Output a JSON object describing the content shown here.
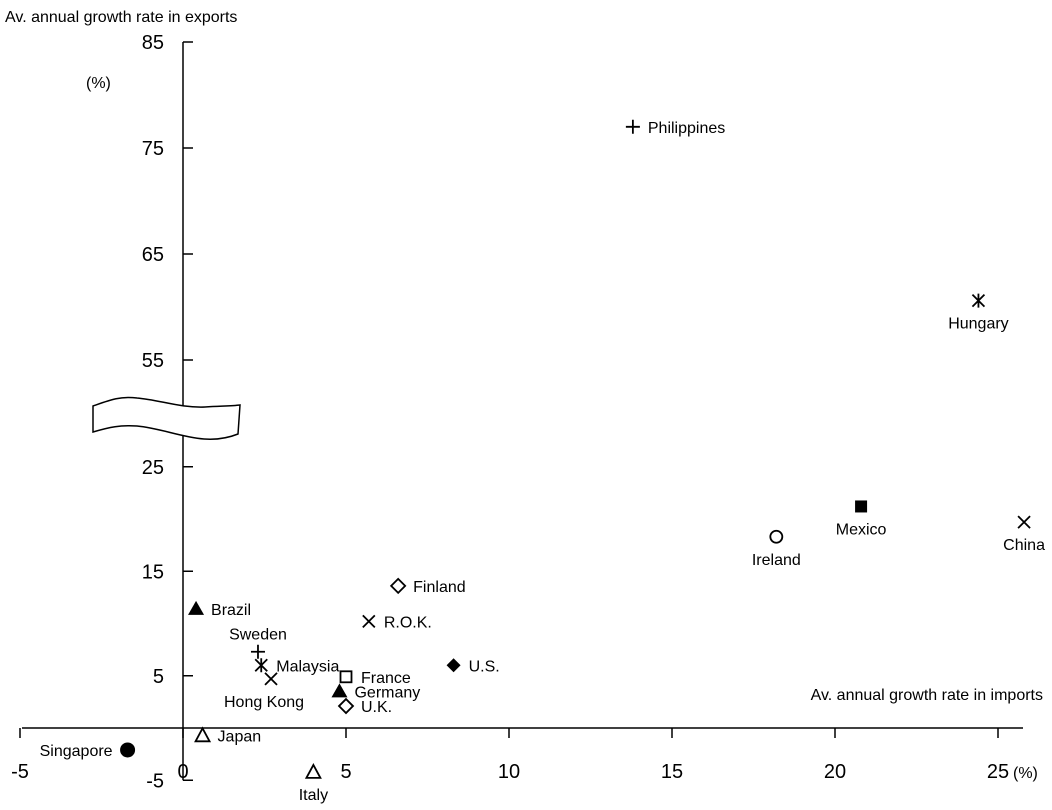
{
  "chart_data": {
    "type": "scatter",
    "title": "",
    "ylabel": "Av. annual growth rate in exports",
    "ylabel_unit": "(%)",
    "xlabel": "Av. annual growth rate in imports",
    "xlabel_unit": "(%)",
    "xlim": [
      -5,
      25.8
    ],
    "ylim": [
      -5,
      85
    ],
    "y_axis_break": {
      "from": 30,
      "to": 50
    },
    "grid": false,
    "legend": "none",
    "x_ticks": [
      {
        "value": -5,
        "label": "-5"
      },
      {
        "value": 0,
        "label": "0"
      },
      {
        "value": 5,
        "label": "5"
      },
      {
        "value": 10,
        "label": "10"
      },
      {
        "value": 15,
        "label": "15"
      },
      {
        "value": 20,
        "label": "20"
      },
      {
        "value": 25,
        "label": "25"
      }
    ],
    "y_ticks": [
      {
        "value": -5,
        "label": "-5"
      },
      {
        "value": 5,
        "label": "5"
      },
      {
        "value": 15,
        "label": "15"
      },
      {
        "value": 25,
        "label": "25"
      },
      {
        "value": 55,
        "label": "55"
      },
      {
        "value": 65,
        "label": "65"
      },
      {
        "value": 75,
        "label": "75"
      },
      {
        "value": 85,
        "label": "85"
      }
    ],
    "points": [
      {
        "name": "Philippines",
        "x": 13.8,
        "y": 77.0,
        "marker": "plus",
        "label_pos": "right"
      },
      {
        "name": "Hungary",
        "x": 24.4,
        "y": 60.6,
        "marker": "star",
        "label_pos": "below"
      },
      {
        "name": "Mexico",
        "x": 20.8,
        "y": 21.2,
        "marker": "square-filled",
        "label_pos": "below"
      },
      {
        "name": "China",
        "x": 25.8,
        "y": 19.7,
        "marker": "cross",
        "label_pos": "below"
      },
      {
        "name": "Ireland",
        "x": 18.2,
        "y": 18.3,
        "marker": "circle-open",
        "label_pos": "below"
      },
      {
        "name": "Finland",
        "x": 6.6,
        "y": 13.6,
        "marker": "diamond-open",
        "label_pos": "right"
      },
      {
        "name": "Brazil",
        "x": 0.4,
        "y": 11.4,
        "marker": "triangle-filled",
        "label_pos": "right"
      },
      {
        "name": "R.O.K.",
        "x": 5.7,
        "y": 10.2,
        "marker": "cross",
        "label_pos": "right"
      },
      {
        "name": "Sweden",
        "x": 2.3,
        "y": 7.3,
        "marker": "plus",
        "label_pos": "above"
      },
      {
        "name": "Malaysia",
        "x": 2.4,
        "y": 6.0,
        "marker": "star",
        "label_pos": "right"
      },
      {
        "name": "U.S.",
        "x": 8.3,
        "y": 6.0,
        "marker": "diamond-filled",
        "label_pos": "right"
      },
      {
        "name": "France",
        "x": 5.0,
        "y": 4.9,
        "marker": "square-open",
        "label_pos": "right"
      },
      {
        "name": "Hong Kong",
        "x": 2.7,
        "y": 4.7,
        "marker": "cross",
        "label_pos": "below-left"
      },
      {
        "name": "Germany",
        "x": 4.8,
        "y": 3.5,
        "marker": "triangle-filled",
        "label_pos": "right"
      },
      {
        "name": "U.K.",
        "x": 5.0,
        "y": 2.1,
        "marker": "diamond-open",
        "label_pos": "right"
      },
      {
        "name": "Japan",
        "x": 0.6,
        "y": -0.7,
        "marker": "triangle-open",
        "label_pos": "right"
      },
      {
        "name": "Singapore",
        "x": -1.7,
        "y": -2.1,
        "marker": "circle-filled",
        "label_pos": "left"
      },
      {
        "name": "Italy",
        "x": 4.0,
        "y": -4.2,
        "marker": "triangle-open",
        "label_pos": "below"
      }
    ]
  }
}
